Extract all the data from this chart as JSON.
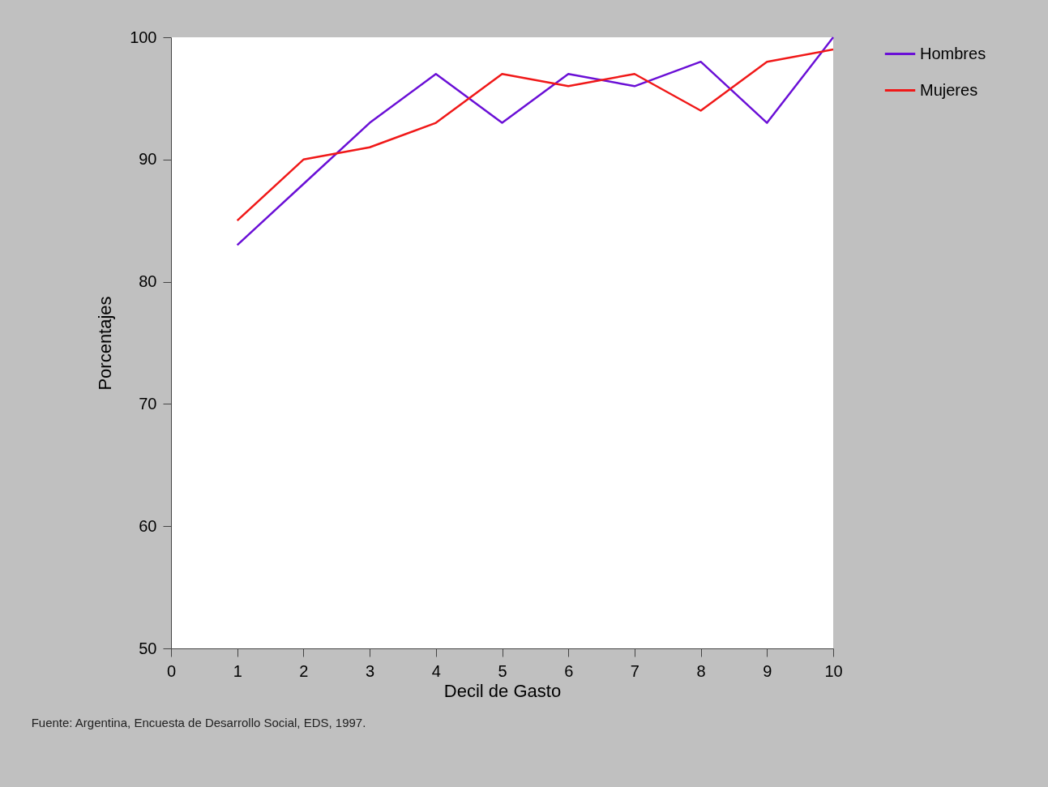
{
  "chart_data": {
    "type": "line",
    "xlabel": "Decil de Gasto",
    "ylabel": "Porcentajes",
    "x": [
      1,
      2,
      3,
      4,
      5,
      6,
      7,
      8,
      9,
      10
    ],
    "series": [
      {
        "name": "Hombres",
        "color": "#6a0fd6",
        "values": [
          83,
          88,
          93,
          97,
          93,
          97,
          96,
          98,
          93,
          100
        ]
      },
      {
        "name": "Mujeres",
        "color": "#f01818",
        "values": [
          85,
          90,
          91,
          93,
          97,
          96,
          97,
          94,
          98,
          99
        ]
      }
    ],
    "xlim": [
      0,
      10
    ],
    "xticks": [
      0,
      1,
      2,
      3,
      4,
      5,
      6,
      7,
      8,
      9,
      10
    ],
    "ylim": [
      50,
      100
    ],
    "yticks": [
      50,
      60,
      70,
      80,
      90,
      100
    ],
    "grid": false,
    "legend": "right",
    "marker": "none",
    "line_style": "solid",
    "annotations": [
      "Fuente: Argentina, Encuesta de Desarrollo Social, EDS, 1997."
    ]
  }
}
